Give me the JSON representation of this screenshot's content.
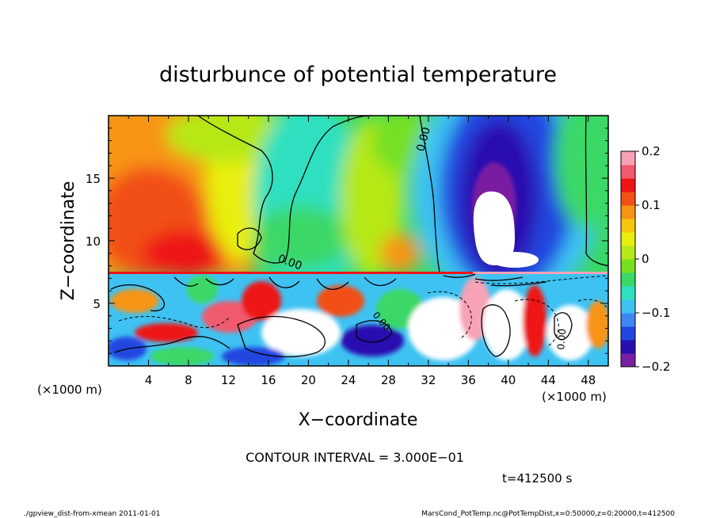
{
  "chart_data": {
    "type": "heatmap",
    "title": "disturbunce of potential temperature",
    "xlabel": "X−coordinate",
    "ylabel": "Z−coordinate",
    "x_unit_left": "(×1000 m)",
    "x_unit_right": "(×1000 m)",
    "xlim": [
      0,
      50
    ],
    "ylim": [
      0,
      20
    ],
    "x_ticks": [
      4,
      8,
      12,
      16,
      20,
      24,
      28,
      32,
      36,
      40,
      44,
      48
    ],
    "x_tick_labels": [
      "4",
      "8",
      "12",
      "16",
      "20",
      "24",
      "28",
      "32",
      "36",
      "40",
      "44",
      "48"
    ],
    "y_ticks": [
      5,
      10,
      15
    ],
    "y_tick_labels": [
      "5",
      "10",
      "15"
    ],
    "colorbar": {
      "min": -0.2,
      "max": 0.2,
      "ticks": [
        0.2,
        0.1,
        0,
        -0.1,
        -0.2
      ],
      "tick_labels": [
        "0.2",
        "0.1",
        "0",
        "−0.1",
        "−0.2"
      ],
      "colors": [
        "#7a1fa2",
        "#2a0fb0",
        "#2046e0",
        "#3f86f5",
        "#3ec2f2",
        "#2ee0c0",
        "#3ad868",
        "#76e020",
        "#b6e818",
        "#e8ee10",
        "#f7c40e",
        "#f79414",
        "#f25016",
        "#ee1416",
        "#f05a6e",
        "#f7a2b6"
      ]
    },
    "contour_labels": [
      "0.00",
      "0.00",
      "0.00",
      "0.00"
    ],
    "contour_interval_text": "CONTOUR INTERVAL = 3.000E−01",
    "time_text": "t=412500 s",
    "footer_left": "./gpview_dist-from-xmean  2011-01-01",
    "footer_right": "MarsCond_PotTemp.nc@PotTempDist,x=0:50000,z=0:20000,t=412500"
  }
}
